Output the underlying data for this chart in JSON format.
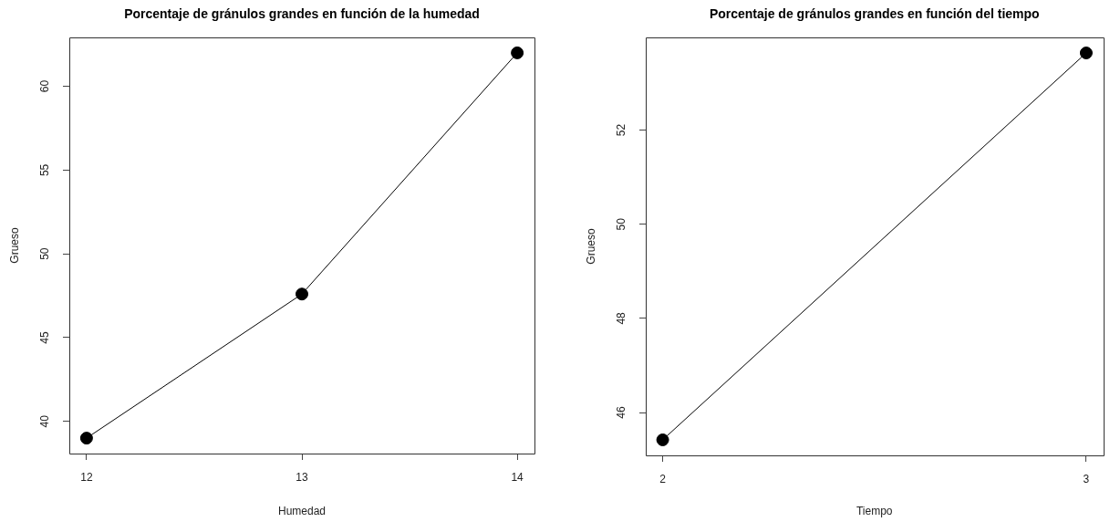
{
  "chart_data": [
    {
      "type": "line",
      "title": "Porcentaje de gránulos grandes en función de la humedad",
      "xlabel": "Humedad",
      "ylabel": "Grueso",
      "x": [
        12,
        13,
        14
      ],
      "values": [
        39.0,
        47.6,
        62.0
      ],
      "color": "#000000",
      "marker": "circle",
      "xlim": [
        11.92,
        14.08
      ],
      "ylim": [
        38.08,
        62.92
      ],
      "xticks": [
        12,
        13,
        14
      ],
      "yticks": [
        40,
        45,
        50,
        55,
        60
      ]
    },
    {
      "type": "line",
      "title": "Porcentaje de gránulos grandes en función del tiempo",
      "xlabel": "Tiempo",
      "ylabel": "Grueso",
      "x": [
        2,
        3
      ],
      "values": [
        45.42,
        53.64
      ],
      "color": "#000000",
      "marker": "circle",
      "xlim": [
        1.96,
        3.04
      ],
      "ylim": [
        45.09,
        53.97
      ],
      "xticks": [
        2,
        3
      ],
      "yticks": [
        46,
        48,
        50,
        52
      ]
    }
  ]
}
